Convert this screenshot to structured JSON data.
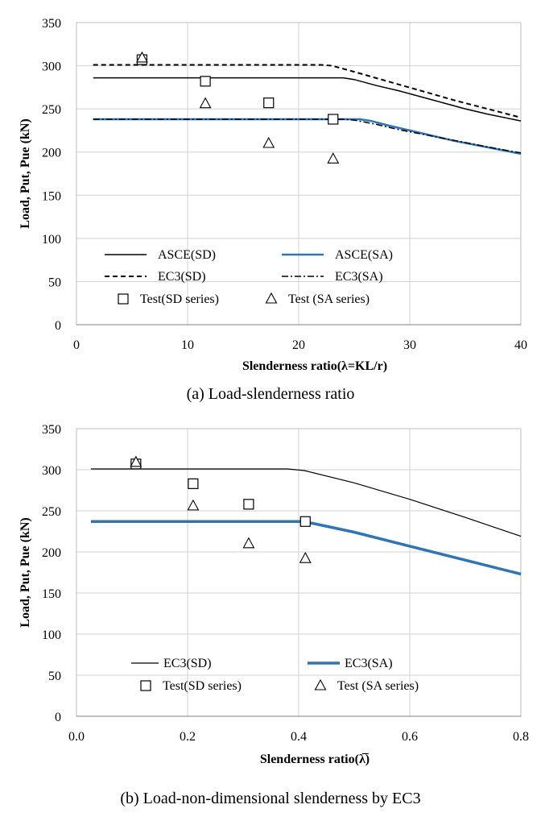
{
  "colors": {
    "black": "#000000",
    "blue": "#2e75b6",
    "grid": "#d0d0d0",
    "frame": "#bfbfbf"
  },
  "chart_data": [
    {
      "type": "line",
      "caption": "(a) Load-slenderness ratio",
      "xlabel": "Slenderness ratio(λ=KL/r)",
      "ylabel": "Load, Put, Pue (kN)",
      "xlim": [
        0,
        40
      ],
      "ylim": [
        0,
        350
      ],
      "xticks": [
        0,
        10,
        20,
        30,
        40
      ],
      "xtick_labels": [
        "0",
        "10",
        "20",
        "30",
        "40"
      ],
      "yticks": [
        0,
        50,
        100,
        150,
        200,
        250,
        300,
        350
      ],
      "ytick_labels": [
        "0",
        "50",
        "100",
        "150",
        "200",
        "250",
        "300",
        "350"
      ],
      "grid": true,
      "legend_position": "bottom",
      "series": [
        {
          "name": "ASCE(SD)",
          "style": "solid",
          "color": "#000000",
          "width": 1.5,
          "x": [
            1.5,
            24,
            25,
            27,
            29,
            31,
            33,
            35,
            37,
            40
          ],
          "y": [
            286,
            286,
            284,
            277,
            271,
            264,
            257,
            250,
            244,
            236
          ]
        },
        {
          "name": "ASCE(SA)",
          "style": "solid",
          "color": "#2e75b6",
          "width": 2.5,
          "x": [
            1.5,
            25.5,
            26.5,
            28,
            30,
            32,
            34,
            36,
            38,
            40
          ],
          "y": [
            238,
            238,
            236,
            231,
            225,
            219,
            213,
            208,
            203,
            198
          ]
        },
        {
          "name": "EC3(SD)",
          "style": "dash",
          "color": "#000000",
          "width": 2,
          "x": [
            1.5,
            22,
            23,
            25,
            28,
            31,
            34,
            37,
            40
          ],
          "y": [
            301,
            301,
            300,
            293,
            282,
            271,
            260,
            250,
            240
          ]
        },
        {
          "name": "EC3(SA)",
          "style": "dashdot",
          "color": "#000000",
          "width": 1.5,
          "x": [
            1.5,
            24,
            25,
            27,
            29,
            31,
            33,
            35,
            37,
            40
          ],
          "y": [
            238,
            238,
            237,
            232,
            226,
            221,
            216,
            211,
            206,
            199
          ]
        },
        {
          "name": "Test(SD series)",
          "marker": "square",
          "color": "#000000",
          "x": [
            5.9,
            11.6,
            17.3,
            23.1
          ],
          "y": [
            307,
            282,
            257,
            238
          ]
        },
        {
          "name": "Test (SA series)",
          "marker": "triangle",
          "color": "#000000",
          "x": [
            5.9,
            11.6,
            17.3,
            23.1
          ],
          "y": [
            309,
            256,
            210,
            192
          ]
        }
      ],
      "legend": [
        {
          "ref": 0,
          "label": "ASCE(SD)"
        },
        {
          "ref": 1,
          "label": "ASCE(SA)"
        },
        {
          "ref": 2,
          "label": "EC3(SD)"
        },
        {
          "ref": 3,
          "label": "EC3(SA)"
        },
        {
          "ref": 4,
          "label": "Test(SD series)"
        },
        {
          "ref": 5,
          "label": "Test (SA series)"
        }
      ]
    },
    {
      "type": "line",
      "caption": "(b) Load-non-dimensional slenderness by EC3",
      "xlabel": "Slenderness ratio(λ̅)",
      "ylabel": "Load, Put, Pue (kN)",
      "xlim": [
        0,
        0.8
      ],
      "ylim": [
        0,
        350
      ],
      "xticks": [
        0,
        0.2,
        0.4,
        0.6,
        0.8
      ],
      "xtick_labels": [
        "0.0",
        "0.2",
        "0.4",
        "0.6",
        "0.8"
      ],
      "yticks": [
        0,
        50,
        100,
        150,
        200,
        250,
        300,
        350
      ],
      "ytick_labels": [
        "0",
        "50",
        "100",
        "150",
        "200",
        "250",
        "300",
        "350"
      ],
      "grid": true,
      "legend_position": "bottom",
      "series": [
        {
          "name": "EC3(SD)",
          "style": "solid",
          "color": "#000000",
          "width": 1.2,
          "x": [
            0.026,
            0.38,
            0.41,
            0.5,
            0.6,
            0.7,
            0.8
          ],
          "y": [
            301,
            301,
            299,
            284,
            264,
            242,
            219
          ]
        },
        {
          "name": "EC3(SA)",
          "style": "solid",
          "color": "#2e75b6",
          "width": 3.5,
          "x": [
            0.026,
            0.41,
            0.5,
            0.6,
            0.7,
            0.8
          ],
          "y": [
            237,
            237,
            224,
            207,
            190,
            173
          ]
        },
        {
          "name": "Test(SD series)",
          "marker": "square",
          "color": "#000000",
          "x": [
            0.107,
            0.21,
            0.31,
            0.412
          ],
          "y": [
            307,
            283,
            258,
            237
          ]
        },
        {
          "name": "Test (SA series)",
          "marker": "triangle",
          "color": "#000000",
          "x": [
            0.107,
            0.21,
            0.31,
            0.412
          ],
          "y": [
            309,
            256,
            210,
            192
          ]
        }
      ],
      "legend": [
        {
          "ref": 0,
          "label": "EC3(SD)"
        },
        {
          "ref": 1,
          "label": "EC3(SA)"
        },
        {
          "ref": 2,
          "label": "Test(SD series)"
        },
        {
          "ref": 3,
          "label": "Test (SA series)"
        }
      ]
    }
  ]
}
